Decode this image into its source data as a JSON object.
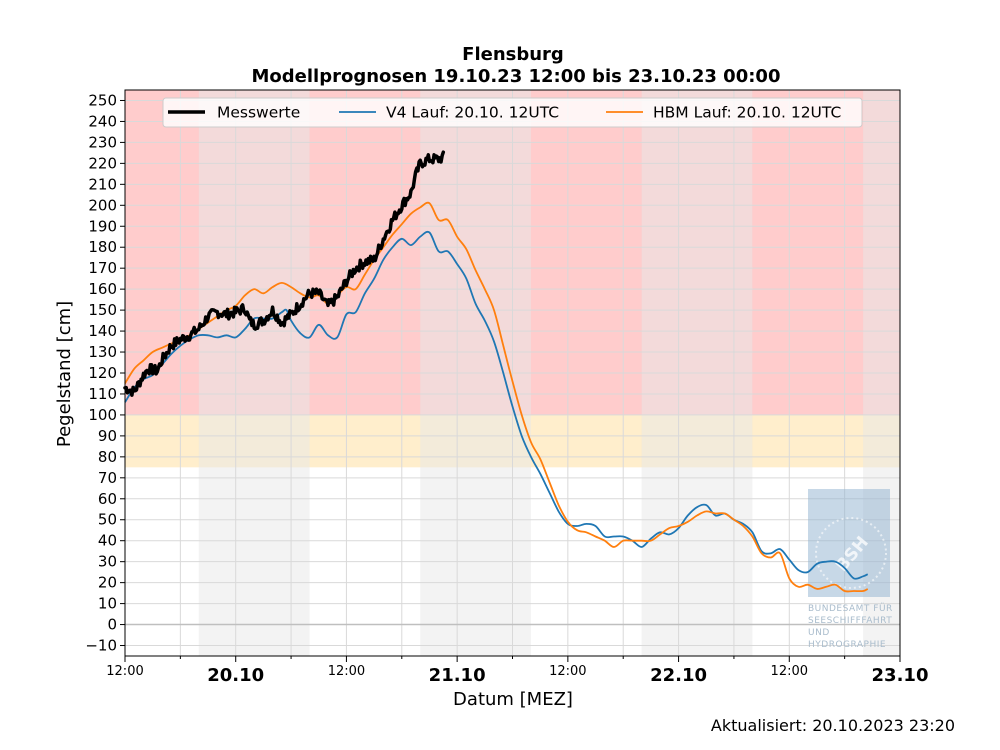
{
  "colors": {
    "red_zone": "#ffcccc",
    "yellow_zone": "#ffeecc",
    "night_band": "#e8e8e8",
    "grid": "#d9d9d9",
    "measured": "#000000",
    "v4": "#1f77b4",
    "hbm": "#ff7f0e",
    "logo": "#8fb2d0"
  },
  "chart_data": {
    "type": "line",
    "title": "Flensburg",
    "subtitle": "Modellprognosen 19.10.23 12:00 bis 23.10.23 00:00",
    "xlabel": "Datum [MEZ]",
    "ylabel": "Pegelstand [cm]",
    "x_unit": "hours since 19.10.23 12:00",
    "xlim": [
      0,
      84
    ],
    "ylim": [
      -15,
      255
    ],
    "grid": true,
    "legend_position": "top",
    "y_ticks": [
      -10,
      0,
      10,
      20,
      30,
      40,
      50,
      60,
      70,
      80,
      90,
      100,
      110,
      120,
      130,
      140,
      150,
      160,
      170,
      180,
      190,
      200,
      210,
      220,
      230,
      240,
      250
    ],
    "x_ticks": [
      {
        "x": 0,
        "label": "12:00",
        "major": false
      },
      {
        "x": 12,
        "label": "20.10",
        "major": true
      },
      {
        "x": 24,
        "label": "12:00",
        "major": false
      },
      {
        "x": 36,
        "label": "21.10",
        "major": true
      },
      {
        "x": 48,
        "label": "12:00",
        "major": false
      },
      {
        "x": 60,
        "label": "22.10",
        "major": true
      },
      {
        "x": 72,
        "label": "12:00",
        "major": false
      },
      {
        "x": 84,
        "label": "23.10",
        "major": true
      }
    ],
    "x_minor_ticks": [
      6,
      18,
      30,
      42,
      54,
      66,
      78
    ],
    "zones": [
      {
        "from": 100,
        "to": 255,
        "level": "red"
      },
      {
        "from": 75,
        "to": 100,
        "level": "yellow"
      }
    ],
    "night_bands": [
      [
        8,
        20
      ],
      [
        32,
        44
      ],
      [
        56,
        68
      ],
      [
        80,
        84
      ]
    ],
    "series": [
      {
        "name": "Messwerte",
        "color": "#000000",
        "noise": 2.5,
        "points": [
          [
            0,
            113
          ],
          [
            1,
            111
          ],
          [
            2,
            119
          ],
          [
            2.5,
            122
          ],
          [
            3.5,
            121
          ],
          [
            4,
            126
          ],
          [
            5,
            133
          ],
          [
            6,
            136
          ],
          [
            7,
            138
          ],
          [
            8,
            141
          ],
          [
            9,
            147
          ],
          [
            10,
            149
          ],
          [
            11,
            148
          ],
          [
            12,
            149
          ],
          [
            13,
            151
          ],
          [
            13.5,
            145
          ],
          [
            14,
            143
          ],
          [
            15,
            145
          ],
          [
            16,
            150
          ],
          [
            16.5,
            147
          ],
          [
            17,
            144
          ],
          [
            18,
            148
          ],
          [
            19,
            153
          ],
          [
            20,
            158
          ],
          [
            21,
            158
          ],
          [
            22,
            152
          ],
          [
            23,
            156
          ],
          [
            24,
            164
          ],
          [
            25,
            170
          ],
          [
            26,
            173
          ],
          [
            27,
            174
          ],
          [
            28,
            184
          ],
          [
            29,
            193
          ],
          [
            30,
            200
          ],
          [
            31,
            206
          ],
          [
            31.5,
            214
          ],
          [
            32,
            220
          ],
          [
            33,
            222
          ],
          [
            34,
            222
          ],
          [
            34.5,
            223
          ]
        ]
      },
      {
        "name": "V4 Lauf: 20.10. 12UTC",
        "color": "#1f77b4",
        "points": [
          [
            0,
            106
          ],
          [
            1,
            113
          ],
          [
            2,
            117
          ],
          [
            3,
            119
          ],
          [
            4,
            124
          ],
          [
            5,
            129
          ],
          [
            6,
            133
          ],
          [
            7,
            136
          ],
          [
            8,
            138
          ],
          [
            9,
            138
          ],
          [
            10,
            137
          ],
          [
            11,
            138
          ],
          [
            12,
            137
          ],
          [
            13,
            141
          ],
          [
            14,
            146
          ],
          [
            15,
            146
          ],
          [
            16,
            146
          ],
          [
            17,
            149
          ],
          [
            17.5,
            150
          ],
          [
            18,
            145
          ],
          [
            19,
            139
          ],
          [
            20,
            137
          ],
          [
            21,
            143
          ],
          [
            22,
            138
          ],
          [
            23,
            137
          ],
          [
            24,
            148
          ],
          [
            25,
            149
          ],
          [
            26,
            158
          ],
          [
            27,
            165
          ],
          [
            28,
            174
          ],
          [
            29,
            180
          ],
          [
            30,
            184
          ],
          [
            31,
            181
          ],
          [
            32,
            185
          ],
          [
            33,
            187
          ],
          [
            34,
            178
          ],
          [
            35,
            178
          ],
          [
            36,
            172
          ],
          [
            37,
            165
          ],
          [
            38,
            153
          ],
          [
            39,
            145
          ],
          [
            40,
            135
          ],
          [
            41,
            120
          ],
          [
            42,
            104
          ],
          [
            43,
            90
          ],
          [
            44,
            80
          ],
          [
            45,
            72
          ],
          [
            46,
            63
          ],
          [
            47,
            54
          ],
          [
            48,
            48
          ],
          [
            49,
            47
          ],
          [
            50,
            48
          ],
          [
            51,
            47
          ],
          [
            52,
            42
          ],
          [
            53,
            42
          ],
          [
            54,
            42
          ],
          [
            55,
            40
          ],
          [
            56,
            37
          ],
          [
            57,
            41
          ],
          [
            58,
            44
          ],
          [
            59,
            43
          ],
          [
            60,
            46
          ],
          [
            61,
            52
          ],
          [
            62,
            56
          ],
          [
            63,
            57
          ],
          [
            64,
            52
          ],
          [
            65,
            53
          ],
          [
            66,
            50
          ],
          [
            67,
            48
          ],
          [
            68,
            44
          ],
          [
            69,
            35
          ],
          [
            70,
            34
          ],
          [
            71,
            36
          ],
          [
            72,
            31
          ],
          [
            73,
            26
          ],
          [
            74,
            25
          ],
          [
            75,
            29
          ],
          [
            76,
            30
          ],
          [
            77,
            30
          ],
          [
            78,
            27
          ],
          [
            79,
            22
          ],
          [
            80,
            23
          ],
          [
            80.5,
            24
          ]
        ]
      },
      {
        "name": "HBM Lauf: 20.10. 12UTC",
        "color": "#ff7f0e",
        "points": [
          [
            0,
            115
          ],
          [
            1,
            122
          ],
          [
            2,
            126
          ],
          [
            3,
            130
          ],
          [
            4,
            132
          ],
          [
            5,
            134
          ],
          [
            6,
            136
          ],
          [
            7,
            138
          ],
          [
            8,
            141
          ],
          [
            9,
            144
          ],
          [
            10,
            147
          ],
          [
            11,
            150
          ],
          [
            12,
            152
          ],
          [
            13,
            157
          ],
          [
            14,
            160
          ],
          [
            15,
            158
          ],
          [
            16,
            161
          ],
          [
            17,
            163
          ],
          [
            18,
            161
          ],
          [
            19,
            158
          ],
          [
            20,
            156
          ],
          [
            21,
            157
          ],
          [
            22,
            153
          ],
          [
            23,
            157
          ],
          [
            24,
            161
          ],
          [
            25,
            160
          ],
          [
            26,
            167
          ],
          [
            27,
            174
          ],
          [
            28,
            180
          ],
          [
            29,
            186
          ],
          [
            30,
            191
          ],
          [
            31,
            196
          ],
          [
            32,
            199
          ],
          [
            33,
            201
          ],
          [
            34,
            193
          ],
          [
            35,
            193
          ],
          [
            36,
            185
          ],
          [
            37,
            179
          ],
          [
            38,
            169
          ],
          [
            39,
            160
          ],
          [
            40,
            150
          ],
          [
            41,
            133
          ],
          [
            42,
            116
          ],
          [
            43,
            100
          ],
          [
            44,
            87
          ],
          [
            45,
            79
          ],
          [
            46,
            68
          ],
          [
            47,
            57
          ],
          [
            48,
            49
          ],
          [
            49,
            45
          ],
          [
            50,
            44
          ],
          [
            51,
            42
          ],
          [
            52,
            40
          ],
          [
            53,
            37
          ],
          [
            54,
            40
          ],
          [
            55,
            40
          ],
          [
            56,
            40
          ],
          [
            57,
            40
          ],
          [
            58,
            43
          ],
          [
            59,
            46
          ],
          [
            60,
            47
          ],
          [
            61,
            49
          ],
          [
            62,
            52
          ],
          [
            63,
            54
          ],
          [
            64,
            53
          ],
          [
            65,
            53
          ],
          [
            66,
            50
          ],
          [
            67,
            47
          ],
          [
            68,
            42
          ],
          [
            69,
            34
          ],
          [
            70,
            32
          ],
          [
            71,
            34
          ],
          [
            72,
            22
          ],
          [
            73,
            18
          ],
          [
            74,
            19
          ],
          [
            75,
            17
          ],
          [
            76,
            18
          ],
          [
            77,
            19
          ],
          [
            78,
            16
          ],
          [
            79,
            16
          ],
          [
            80,
            16
          ],
          [
            80.5,
            17
          ]
        ]
      }
    ]
  },
  "logo": {
    "emblem": "BSH",
    "lines": [
      "BUNDESAMT FÜR",
      "SEESCHIFFFAHRT",
      "UND",
      "HYDROGRAPHIE"
    ]
  },
  "footer": {
    "updated": "Aktualisiert: 20.10.2023 23:20"
  }
}
